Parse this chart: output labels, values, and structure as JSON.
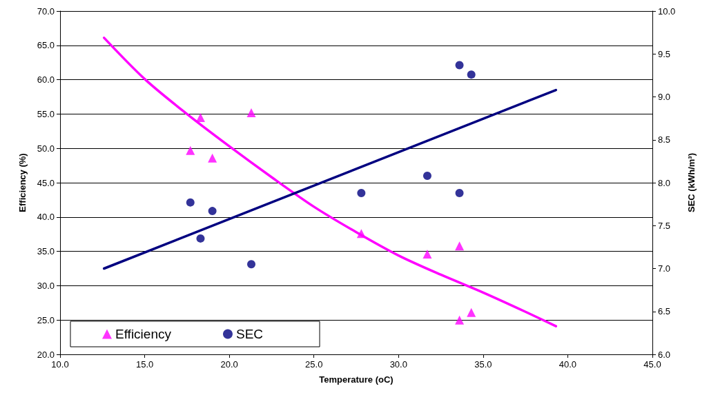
{
  "chart_data": {
    "type": "scatter",
    "xlabel": "Temperature (oC)",
    "ylabel": "Efficiency (%)",
    "y2label": "SEC (kWh/m³)",
    "xlim": [
      10,
      45
    ],
    "xticks": [
      {
        "value": 10,
        "label": "10.0"
      },
      {
        "value": 15,
        "label": "15.0"
      },
      {
        "value": 20,
        "label": "20.0"
      },
      {
        "value": 25,
        "label": "25.0"
      },
      {
        "value": 30,
        "label": "30.0"
      },
      {
        "value": 35,
        "label": "35.0"
      },
      {
        "value": 40,
        "label": "40.0"
      },
      {
        "value": 45,
        "label": "45.0"
      }
    ],
    "ylim": [
      20,
      70
    ],
    "yticks": [
      {
        "value": 20,
        "label": "20.0"
      },
      {
        "value": 25,
        "label": "25.0"
      },
      {
        "value": 30,
        "label": "30.0"
      },
      {
        "value": 35,
        "label": "35.0"
      },
      {
        "value": 40,
        "label": "40.0"
      },
      {
        "value": 45,
        "label": "45.0"
      },
      {
        "value": 50,
        "label": "50.0"
      },
      {
        "value": 55,
        "label": "55.0"
      },
      {
        "value": 60,
        "label": "60.0"
      },
      {
        "value": 65,
        "label": "65.0"
      },
      {
        "value": 70,
        "label": "70.0"
      }
    ],
    "y2lim": [
      6,
      10
    ],
    "y2ticks": [
      {
        "value": 6,
        "label": "6.0"
      },
      {
        "value": 6.5,
        "label": "6.5"
      },
      {
        "value": 7,
        "label": "7.0"
      },
      {
        "value": 7.5,
        "label": "7.5"
      },
      {
        "value": 8,
        "label": "8.0"
      },
      {
        "value": 8.5,
        "label": "8.5"
      },
      {
        "value": 9,
        "label": "9.0"
      },
      {
        "value": 9.5,
        "label": "9.5"
      },
      {
        "value": 10,
        "label": "10.0"
      }
    ],
    "grid": "y",
    "legend": "bottom left",
    "series": [
      {
        "name": "Efficiency",
        "marker": "triangle",
        "color": "#ff00ff",
        "x": [
          17.7,
          18.3,
          19.0,
          21.3,
          27.8,
          31.7,
          33.6,
          33.6,
          34.3
        ],
        "values": [
          49.7,
          54.5,
          48.6,
          55.2,
          37.6,
          34.6,
          35.8,
          25.0,
          26.1
        ]
      },
      {
        "name": "SEC",
        "marker": "circle",
        "axis": "y2",
        "color": "#000080",
        "x": [
          17.7,
          18.3,
          19.0,
          21.3,
          27.8,
          31.7,
          33.6,
          33.6,
          34.3
        ],
        "values": [
          7.77,
          7.35,
          7.67,
          7.05,
          7.88,
          8.08,
          7.88,
          9.37,
          9.26
        ]
      },
      {
        "type": "line",
        "marker": "none",
        "color": "#ff00ff",
        "x": [
          12.6,
          15,
          17.5,
          20,
          22.5,
          25,
          27.5,
          30,
          32.5,
          35,
          37.5,
          39.3
        ],
        "values": [
          66.1,
          60.1,
          55.0,
          50.3,
          45.8,
          41.5,
          37.8,
          34.4,
          31.6,
          29.0,
          26.2,
          24.1
        ]
      },
      {
        "type": "line",
        "marker": "none",
        "axis": "y2",
        "color": "#000080",
        "x": [
          12.6,
          39.3
        ],
        "values": [
          7.0,
          9.08
        ]
      }
    ]
  }
}
